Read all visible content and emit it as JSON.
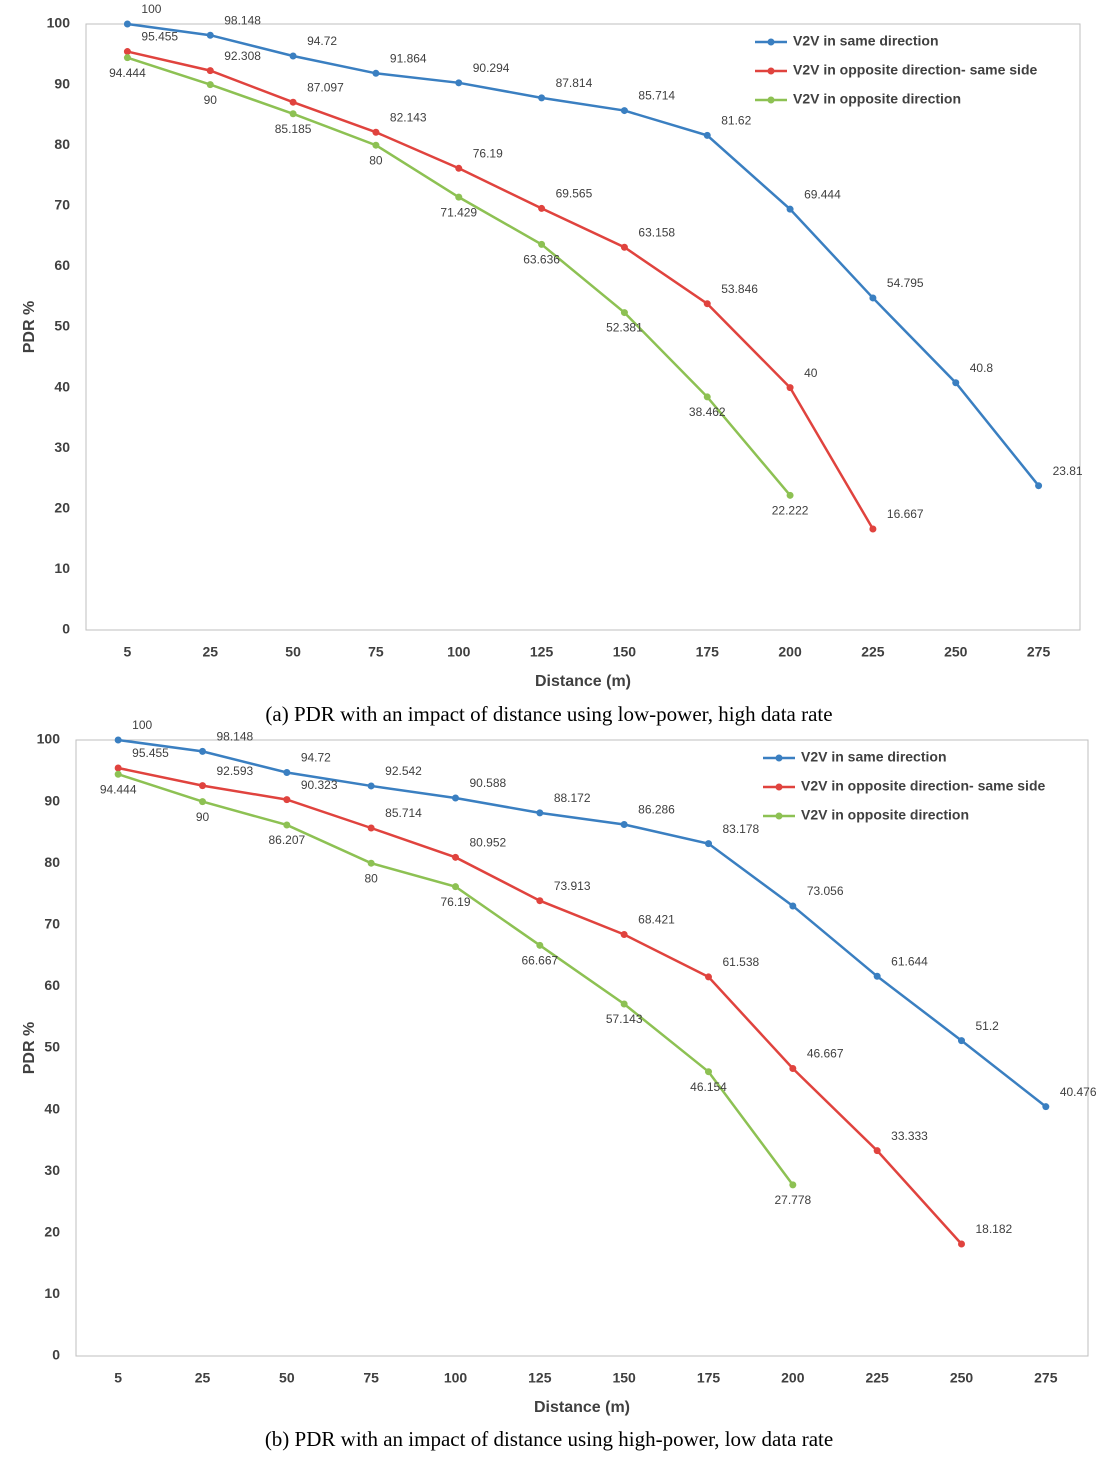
{
  "chart_data": [
    {
      "type": "line",
      "xlabel": "Distance (m)",
      "ylabel": "PDR %",
      "caption": "(a) PDR with an impact of distance using low-power, high data rate",
      "categories": [
        "5",
        "25",
        "50",
        "75",
        "100",
        "125",
        "150",
        "175",
        "200",
        "225",
        "250",
        "275"
      ],
      "ylim": [
        0,
        100
      ],
      "yticks": [
        0,
        10,
        20,
        30,
        40,
        50,
        60,
        70,
        80,
        90,
        100
      ],
      "legend": "upper right",
      "series": [
        {
          "name": "V2V in same direction",
          "color": "#3a7fc1",
          "values": [
            100,
            98.148,
            94.72,
            91.864,
            90.294,
            87.814,
            85.714,
            81.62,
            69.444,
            54.795,
            40.8,
            23.81
          ]
        },
        {
          "name": "V2V in opposite direction- same side",
          "color": "#e0433e",
          "values": [
            95.455,
            92.308,
            87.097,
            82.143,
            76.19,
            69.565,
            63.158,
            53.846,
            40,
            16.667,
            null,
            null
          ]
        },
        {
          "name": "V2V in opposite direction",
          "color": "#8dc153",
          "values": [
            94.444,
            90,
            85.185,
            80,
            71.429,
            63.636,
            52.381,
            38.462,
            22.222,
            null,
            null,
            null
          ]
        }
      ]
    },
    {
      "type": "line",
      "xlabel": "Distance (m)",
      "ylabel": "PDR %",
      "caption": "(b) PDR with an impact of distance using high-power, low data rate",
      "categories": [
        "5",
        "25",
        "50",
        "75",
        "100",
        "125",
        "150",
        "175",
        "200",
        "225",
        "250",
        "275"
      ],
      "ylim": [
        0,
        100
      ],
      "yticks": [
        0,
        10,
        20,
        30,
        40,
        50,
        60,
        70,
        80,
        90,
        100
      ],
      "legend": "upper right",
      "series": [
        {
          "name": "V2V in same direction",
          "color": "#3a7fc1",
          "values": [
            100,
            98.148,
            94.72,
            92.542,
            90.588,
            88.172,
            86.286,
            83.178,
            73.056,
            61.644,
            51.2,
            40.476
          ]
        },
        {
          "name": "V2V in opposite direction- same side",
          "color": "#e0433e",
          "values": [
            95.455,
            92.593,
            90.323,
            85.714,
            80.952,
            73.913,
            68.421,
            61.538,
            46.667,
            33.333,
            18.182,
            null
          ]
        },
        {
          "name": "V2V in opposite direction",
          "color": "#8dc153",
          "values": [
            94.444,
            90,
            86.207,
            80,
            76.19,
            66.667,
            57.143,
            46.154,
            27.778,
            null,
            null,
            null
          ]
        }
      ]
    }
  ]
}
